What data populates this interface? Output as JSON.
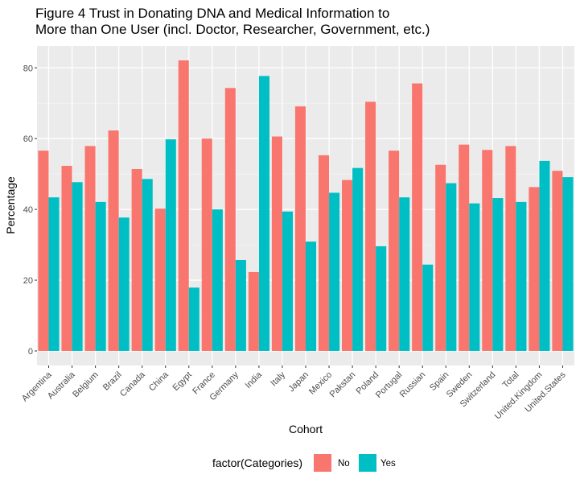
{
  "chart_data": {
    "type": "bar",
    "title_lines": [
      "Figure 4 Trust in Donating DNA and Medical Information to",
      "More than One User (incl. Doctor, Researcher, Government, etc.)"
    ],
    "xlabel": "Cohort",
    "ylabel": "Percentage",
    "ylim": [
      -4.1,
      86.2
    ],
    "yticks": [
      0,
      20,
      40,
      60,
      80
    ],
    "grid": true,
    "legend": {
      "title": "factor(Categories)",
      "position": "bottom"
    },
    "categories": [
      "Argentina",
      "Australia",
      "Belgium",
      "Brazil",
      "Canada",
      "China",
      "Egypt",
      "France",
      "Germany",
      "India",
      "Italy",
      "Japan",
      "Mexico",
      "Pakstan",
      "Poland",
      "Portugal",
      "Russian",
      "Spain",
      "Sweden",
      "Switzerland",
      "Total",
      "United.Kingdom",
      "United.States"
    ],
    "series": [
      {
        "name": "No",
        "color": "#F8766D",
        "values": [
          56.6,
          52.3,
          57.9,
          62.3,
          51.4,
          40.2,
          82.1,
          60.0,
          74.3,
          22.3,
          60.6,
          69.1,
          55.3,
          48.3,
          70.4,
          56.6,
          75.6,
          52.6,
          58.3,
          56.8,
          57.9,
          46.3,
          50.9
        ]
      },
      {
        "name": "Yes",
        "color": "#00BFC4",
        "values": [
          43.4,
          47.7,
          42.1,
          37.7,
          48.6,
          59.8,
          17.9,
          40.0,
          25.7,
          77.7,
          39.4,
          30.9,
          44.7,
          51.7,
          29.6,
          43.4,
          24.4,
          47.4,
          41.7,
          43.2,
          42.1,
          53.7,
          49.1
        ]
      }
    ]
  }
}
